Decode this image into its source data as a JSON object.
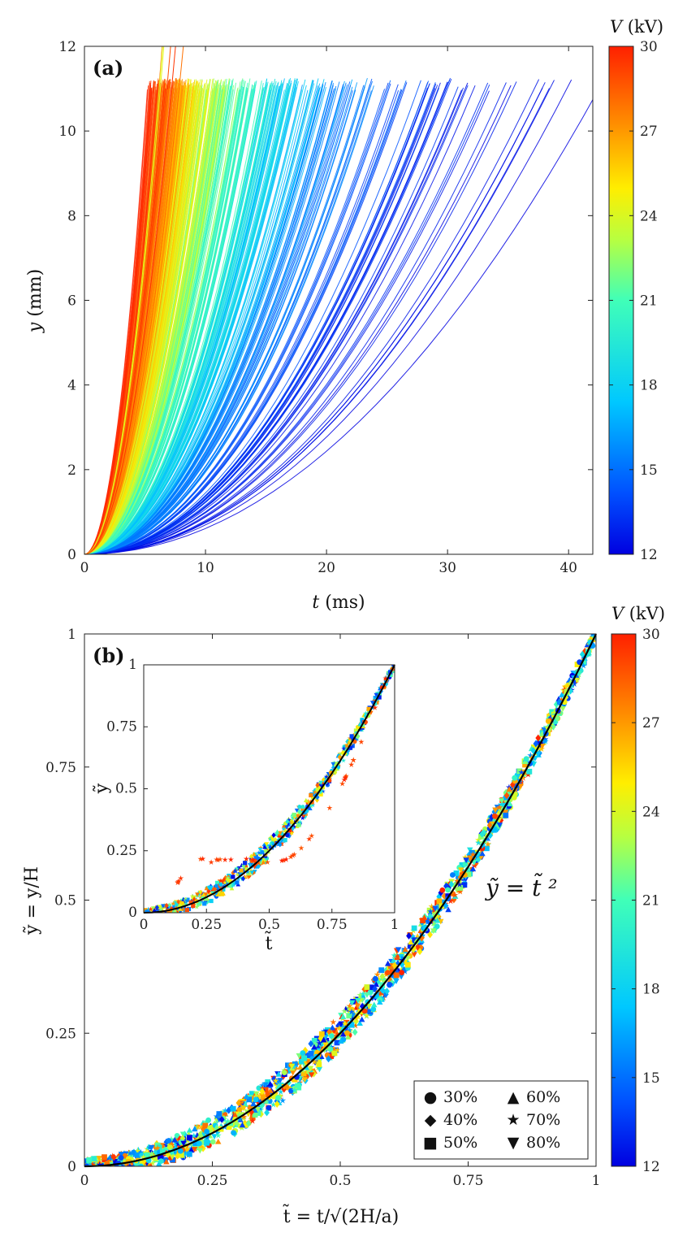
{
  "chart_data": [
    {
      "panel": "(a)",
      "type": "line",
      "xlabel_var": "t",
      "xlabel_unit": " (ms)",
      "ylabel_var": "y",
      "ylabel_unit": " (mm)",
      "xlim": [
        0,
        42
      ],
      "ylim": [
        0,
        12
      ],
      "xticks": [
        0,
        10,
        20,
        30,
        40
      ],
      "yticks": [
        0,
        2,
        4,
        6,
        8,
        10,
        12
      ],
      "series_description": "Trajectories y(t) colored by applied voltage V; y grows roughly quadratically with t until ~11 mm",
      "voltage_range_kV": [
        12,
        30
      ],
      "approx_final_time_ms_at_12kV": 38,
      "approx_final_time_ms_at_30kV": 6,
      "final_y_mm": 11.1,
      "colorbar": {
        "title_var": "V",
        "title_unit": " (kV)",
        "ticks": [
          12,
          15,
          18,
          21,
          24,
          27,
          30
        ]
      }
    },
    {
      "panel": "(b)",
      "type": "scatter",
      "xlabel_text": "t̃ = t/√(2H/a)",
      "ylabel_text": "ỹ = y/H",
      "xlim": [
        0,
        1
      ],
      "ylim": [
        0,
        1
      ],
      "xticks": [
        "0",
        "0.25",
        "0.5",
        "0.75",
        "1"
      ],
      "yticks": [
        "0",
        "0.25",
        "0.5",
        "0.75",
        "1"
      ],
      "fit_curve": {
        "label": "ỹ = t̃ ²",
        "formula": "y = x^2",
        "color": "#000000"
      },
      "legend": {
        "placement": "bottom-right",
        "entries": [
          {
            "marker": "●",
            "label": "30%"
          },
          {
            "marker": "▲",
            "label": "60%"
          },
          {
            "marker": "◆",
            "label": "40%"
          },
          {
            "marker": "★",
            "label": "70%"
          },
          {
            "marker": "■",
            "label": "50%"
          },
          {
            "marker": "▼",
            "label": "80%"
          }
        ]
      },
      "inset": {
        "xlabel_text": "t̃",
        "ylabel_text": "ỹ",
        "xlim": [
          0,
          1
        ],
        "ylim": [
          0,
          1
        ],
        "xticks": [
          "0",
          "0.25",
          "0.5",
          "0.75",
          "1"
        ],
        "yticks": [
          "0",
          "0.25",
          "0.5",
          "0.75",
          "1"
        ],
        "outlier_plateau_y": 0.21
      },
      "colorbar": {
        "title_var": "V",
        "title_unit": " (kV)",
        "ticks": [
          12,
          15,
          18,
          21,
          24,
          27,
          30
        ]
      }
    }
  ]
}
